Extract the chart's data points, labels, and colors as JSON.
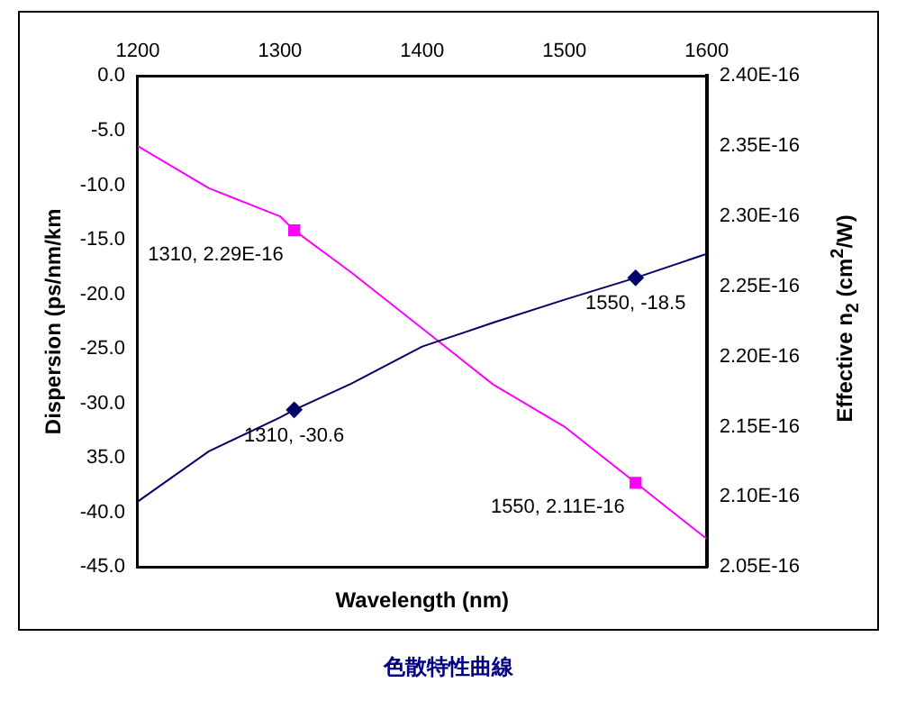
{
  "chart_data": {
    "type": "line",
    "title": "色散特性曲線",
    "xlabel": "Wavelength (nm)",
    "ylabel": "Dispersion (ps/nm/km",
    "y2label": "Effective n$_{2}$ (cm$^{2}$/W)",
    "xlim": [
      1200,
      1600
    ],
    "xticks": [
      1200,
      1300,
      1400,
      1500,
      1600
    ],
    "ylim": [
      -45,
      0
    ],
    "yticks": [
      {
        "value": 0,
        "label": "0.0"
      },
      {
        "value": -5,
        "label": "-5.0"
      },
      {
        "value": -10,
        "label": "-10.0"
      },
      {
        "value": -15,
        "label": "-15.0"
      },
      {
        "value": -20,
        "label": "-20.0"
      },
      {
        "value": -25,
        "label": "-25.0"
      },
      {
        "value": -30,
        "label": "-30.0"
      },
      {
        "value": -35,
        "label": "35.0"
      },
      {
        "value": -40,
        "label": "-40.0"
      },
      {
        "value": -45,
        "label": "-45.0"
      }
    ],
    "y2lim": [
      2.05e-16,
      2.4e-16
    ],
    "y2ticks": [
      {
        "value": 2.05e-16,
        "label": "2.05E-16"
      },
      {
        "value": 2.1e-16,
        "label": "2.10E-16"
      },
      {
        "value": 2.15e-16,
        "label": "2.15E-16"
      },
      {
        "value": 2.2e-16,
        "label": "2.20E-16"
      },
      {
        "value": 2.25e-16,
        "label": "2.25E-16"
      },
      {
        "value": 2.3e-16,
        "label": "2.30E-16"
      },
      {
        "value": 2.35e-16,
        "label": "2.35E-16"
      },
      {
        "value": 2.4e-16,
        "label": "2.40E-16"
      }
    ],
    "grid": false,
    "legend": false,
    "line_style": "solid",
    "series": [
      {
        "color": "#000066",
        "x": [
          1200,
          1250,
          1300,
          1310,
          1350,
          1400,
          1450,
          1500,
          1550,
          1600
        ],
        "values": [
          -39.0,
          -34.4,
          -31.3,
          -30.6,
          -28.2,
          -24.8,
          -22.6,
          -20.5,
          -18.5,
          -16.3
        ]
      },
      {
        "color": "#ff00ff",
        "axis": "y2",
        "x": [
          1200,
          1250,
          1300,
          1310,
          1350,
          1400,
          1450,
          1500,
          1550,
          1600
        ],
        "values": [
          2.35e-16,
          2.32e-16,
          2.3e-16,
          2.29e-16,
          2.26e-16,
          2.22e-16,
          2.18e-16,
          2.15e-16,
          2.11e-16,
          2.07e-16
        ]
      },
      {
        "type": "scatter",
        "color": "#000066",
        "marker": "diamond",
        "x": [
          1310,
          1550
        ],
        "values": [
          -30.6,
          -18.5
        ],
        "value_labels": [
          "1310, -30.6",
          "1550, -18.5"
        ]
      },
      {
        "type": "scatter",
        "color": "#ff00ff",
        "marker": "square",
        "axis": "y2",
        "x": [
          1310,
          1550
        ],
        "values": [
          2.29e-16,
          2.11e-16
        ],
        "value_labels": [
          "1310, 2.29E-16",
          "1550, 2.11E-16"
        ]
      }
    ]
  }
}
